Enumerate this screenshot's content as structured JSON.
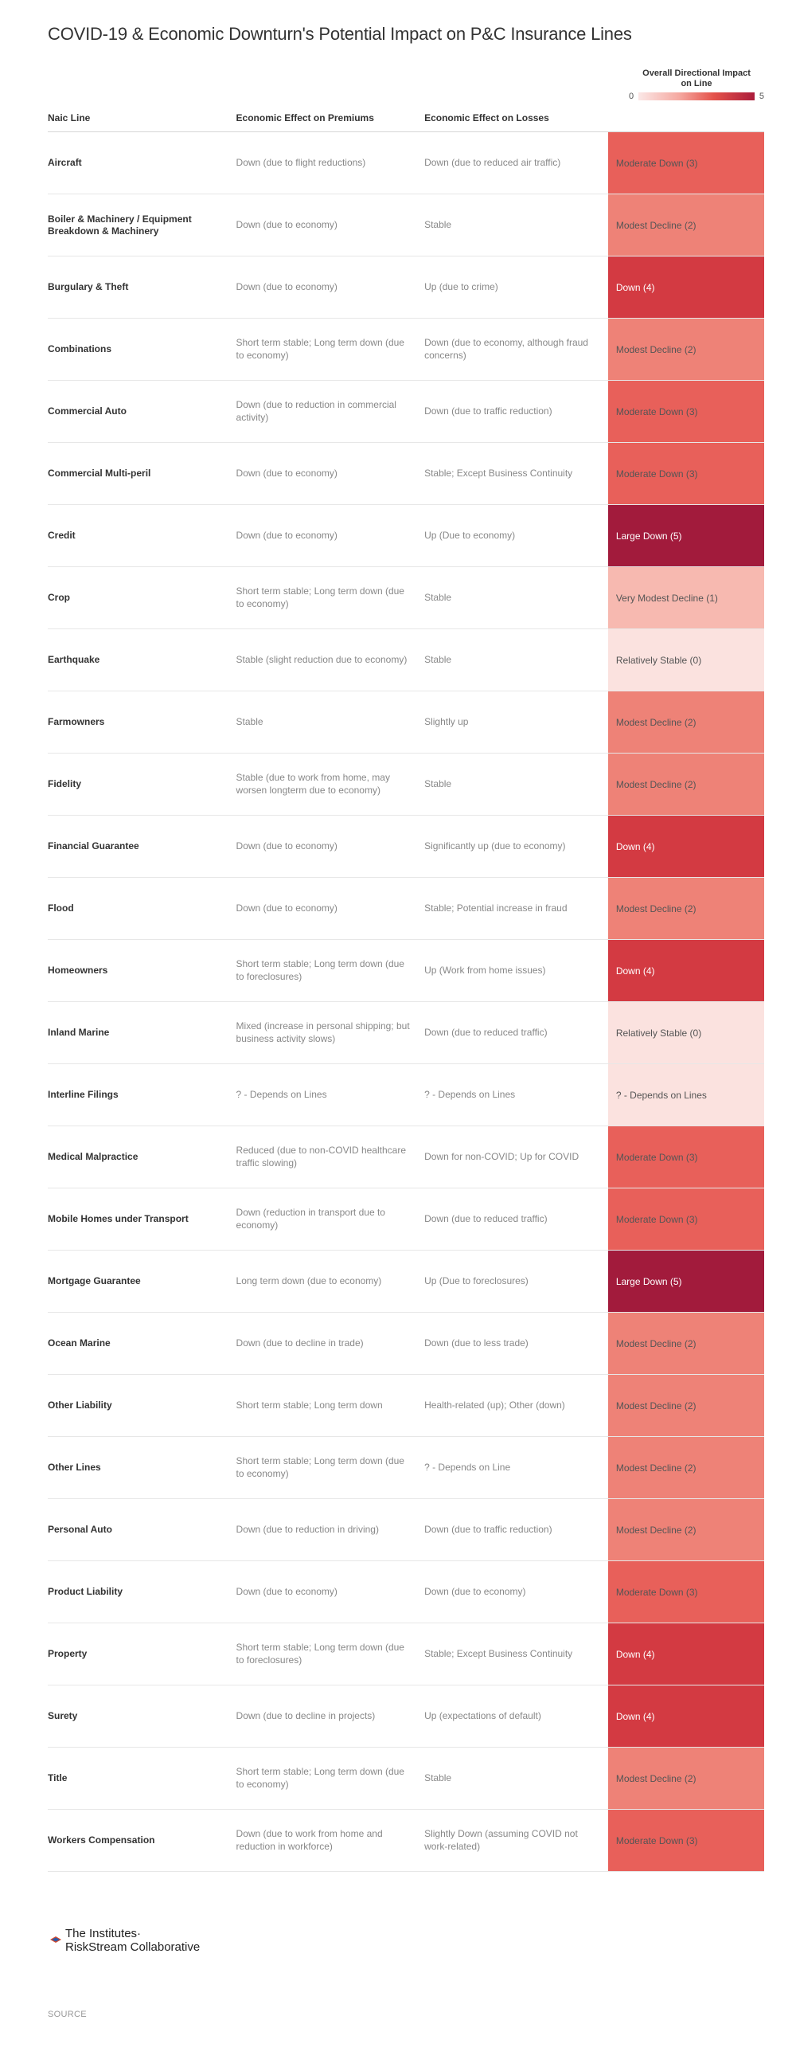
{
  "title": "COVID-19 & Economic Downturn's Potential Impact on P&C Insurance Lines",
  "scale": {
    "title_l1": "Overall Directional Impact",
    "title_l2": "on Line",
    "min": "0",
    "max": "5"
  },
  "columns": {
    "naic": "Naic Line",
    "premiums": "Economic Effect on Premiums",
    "losses": "Economic Effect on Losses",
    "impact": ""
  },
  "impact_colors": {
    "0": "#fbe2df",
    "1": "#f7b9b0",
    "2": "#ee8277",
    "3": "#e8605a",
    "4": "#d33a42",
    "5": "#a21b3c",
    "na": "#fbe2df"
  },
  "dark_threshold": 4,
  "rows": [
    {
      "naic": "Aircraft",
      "prem": "Down (due to flight reductions)",
      "loss": "Down (due to reduced air traffic)",
      "impact_label": "Moderate Down (3)",
      "level": 3
    },
    {
      "naic": "Boiler & Machinery / Equipment Breakdown & Machinery",
      "prem": "Down (due to economy)",
      "loss": "Stable",
      "impact_label": "Modest Decline (2)",
      "level": 2
    },
    {
      "naic": "Burgulary & Theft",
      "prem": "Down (due to economy)",
      "loss": "Up (due to crime)",
      "impact_label": "Down (4)",
      "level": 4
    },
    {
      "naic": "Combinations",
      "prem": "Short term stable; Long term down (due to economy)",
      "loss": "Down (due to economy, although fraud concerns)",
      "impact_label": "Modest Decline (2)",
      "level": 2
    },
    {
      "naic": "Commercial Auto",
      "prem": "Down (due to reduction in commercial activity)",
      "loss": "Down (due to traffic reduction)",
      "impact_label": "Moderate Down (3)",
      "level": 3
    },
    {
      "naic": "Commercial Multi-peril",
      "prem": "Down (due to economy)",
      "loss": "Stable; Except Business Continuity",
      "impact_label": "Moderate Down (3)",
      "level": 3
    },
    {
      "naic": "Credit",
      "prem": "Down (due to economy)",
      "loss": "Up (Due to economy)",
      "impact_label": "Large Down (5)",
      "level": 5
    },
    {
      "naic": "Crop",
      "prem": "Short term stable; Long term down (due to economy)",
      "loss": "Stable",
      "impact_label": "Very Modest Decline (1)",
      "level": 1
    },
    {
      "naic": "Earthquake",
      "prem": "Stable (slight reduction due to economy)",
      "loss": "Stable",
      "impact_label": "Relatively Stable (0)",
      "level": 0
    },
    {
      "naic": "Farmowners",
      "prem": "Stable",
      "loss": "Slightly up",
      "impact_label": "Modest Decline (2)",
      "level": 2
    },
    {
      "naic": "Fidelity",
      "prem": "Stable (due to work from home, may worsen longterm due to economy)",
      "loss": "Stable",
      "impact_label": "Modest Decline (2)",
      "level": 2
    },
    {
      "naic": "Financial Guarantee",
      "prem": "Down (due to economy)",
      "loss": "Significantly up (due to economy)",
      "impact_label": "Down (4)",
      "level": 4
    },
    {
      "naic": "Flood",
      "prem": "Down (due to economy)",
      "loss": "Stable; Potential increase in fraud",
      "impact_label": "Modest Decline (2)",
      "level": 2
    },
    {
      "naic": "Homeowners",
      "prem": "Short term stable; Long term down (due to foreclosures)",
      "loss": "Up (Work from home issues)",
      "impact_label": "Down (4)",
      "level": 4
    },
    {
      "naic": "Inland Marine",
      "prem": "Mixed (increase in personal shipping; but business activity slows)",
      "loss": "Down (due to reduced traffic)",
      "impact_label": "Relatively Stable (0)",
      "level": 0
    },
    {
      "naic": "Interline Filings",
      "prem": "? - Depends on Lines",
      "loss": "? - Depends on Lines",
      "impact_label": "? - Depends on Lines",
      "level": "na"
    },
    {
      "naic": "Medical Malpractice",
      "prem": "Reduced (due to non-COVID healthcare traffic slowing)",
      "loss": "Down for non-COVID; Up for COVID",
      "impact_label": "Moderate Down (3)",
      "level": 3
    },
    {
      "naic": "Mobile Homes under Transport",
      "prem": "Down (reduction in transport due to economy)",
      "loss": "Down (due to reduced traffic)",
      "impact_label": "Moderate Down (3)",
      "level": 3
    },
    {
      "naic": "Mortgage Guarantee",
      "prem": "Long term down (due to economy)",
      "loss": "Up (Due to foreclosures)",
      "impact_label": "Large Down (5)",
      "level": 5
    },
    {
      "naic": "Ocean Marine",
      "prem": "Down (due to decline in trade)",
      "loss": "Down (due to less trade)",
      "impact_label": "Modest Decline (2)",
      "level": 2
    },
    {
      "naic": "Other Liability",
      "prem": "Short term stable; Long term down",
      "loss": "Health-related (up); Other (down)",
      "impact_label": "Modest Decline (2)",
      "level": 2
    },
    {
      "naic": "Other Lines",
      "prem": "Short term stable; Long term down (due to economy)",
      "loss": "? - Depends on Line",
      "impact_label": "Modest Decline (2)",
      "level": 2
    },
    {
      "naic": "Personal Auto",
      "prem": "Down (due to reduction in driving)",
      "loss": "Down (due to traffic reduction)",
      "impact_label": "Modest Decline (2)",
      "level": 2
    },
    {
      "naic": "Product Liability",
      "prem": "Down (due to economy)",
      "loss": "Down (due to economy)",
      "impact_label": "Moderate Down (3)",
      "level": 3
    },
    {
      "naic": "Property",
      "prem": "Short term stable; Long term down (due to foreclosures)",
      "loss": "Stable; Except Business Continuity",
      "impact_label": "Down (4)",
      "level": 4
    },
    {
      "naic": "Surety",
      "prem": "Down (due to decline in projects)",
      "loss": "Up (expectations of default)",
      "impact_label": "Down (4)",
      "level": 4
    },
    {
      "naic": "Title",
      "prem": "Short term stable; Long term down (due to economy)",
      "loss": "Stable",
      "impact_label": "Modest Decline (2)",
      "level": 2
    },
    {
      "naic": "Workers Compensation",
      "prem": "Down (due to work from home and reduction in workforce)",
      "loss": "Slightly Down (assuming COVID not work-related)",
      "impact_label": "Moderate Down (3)",
      "level": 3
    }
  ],
  "footer": {
    "logo_l1": "The Institutes·",
    "logo_l2": "RiskStream Collaborative",
    "source": "SOURCE"
  }
}
